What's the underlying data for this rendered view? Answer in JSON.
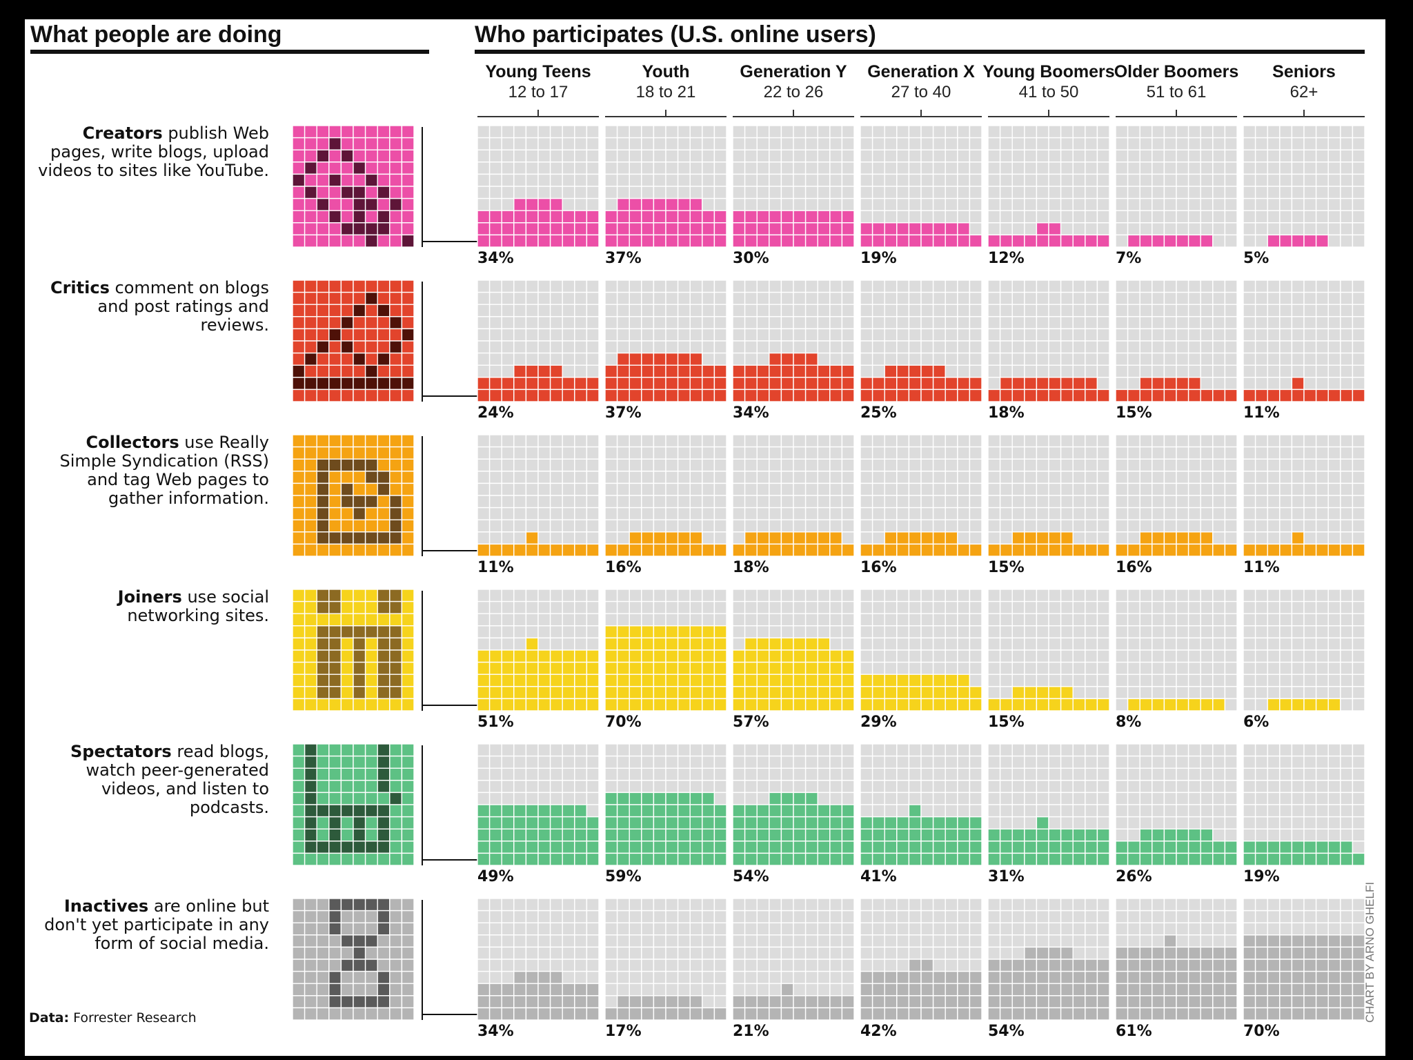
{
  "headers": {
    "left": "What people are doing",
    "right": "Who participates (U.S. online users)"
  },
  "source": {
    "label": "Data:",
    "text": "Forrester Research"
  },
  "credit": "CHART BY ARNO GHELFI",
  "chart_data": {
    "type": "heatmap",
    "title": "Who participates (U.S. online users)",
    "unit": "percent of online users in age group",
    "groups": [
      {
        "name": "Young Teens",
        "range": "12 to 17"
      },
      {
        "name": "Youth",
        "range": "18 to 21"
      },
      {
        "name": "Generation Y",
        "range": "22 to 26"
      },
      {
        "name": "Generation X",
        "range": "27 to 40"
      },
      {
        "name": "Young Boomers",
        "range": "41 to 50"
      },
      {
        "name": "Older Boomers",
        "range": "51 to 61"
      },
      {
        "name": "Seniors",
        "range": "62+"
      }
    ],
    "activities": [
      {
        "name": "Creators",
        "description": "publish Web pages, write blogs, upload videos to sites like YouTube.",
        "color": "#ec4fa7",
        "dark": "#5e1538",
        "values": [
          34,
          37,
          30,
          19,
          12,
          7,
          5
        ],
        "labels": [
          "34%",
          "37%",
          "30%",
          "19%",
          "12%",
          "7%",
          "5%"
        ]
      },
      {
        "name": "Critics",
        "description": "comment on blogs and post ratings and reviews.",
        "color": "#e2442c",
        "dark": "#4e1108",
        "values": [
          24,
          37,
          34,
          25,
          18,
          15,
          11
        ],
        "labels": [
          "24%",
          "37%",
          "34%",
          "25%",
          "18%",
          "15%",
          "11%"
        ]
      },
      {
        "name": "Collectors",
        "description": "use Really Simple Syndication (RSS) and tag Web pages to gather information.",
        "color": "#f5a312",
        "dark": "#6e4b1d",
        "values": [
          11,
          16,
          18,
          16,
          15,
          16,
          11
        ],
        "labels": [
          "11%",
          "16%",
          "18%",
          "16%",
          "15%",
          "16%",
          "11%"
        ]
      },
      {
        "name": "Joiners",
        "description": "use social networking sites.",
        "color": "#f6d31c",
        "dark": "#8c6a22",
        "values": [
          51,
          70,
          57,
          29,
          15,
          8,
          6
        ],
        "labels": [
          "51%",
          "70%",
          "57%",
          "29%",
          "15%",
          "8%",
          "6%"
        ]
      },
      {
        "name": "Spectators",
        "description": "read blogs, watch peer-generated videos, and listen to podcasts.",
        "color": "#5dc184",
        "dark": "#2d5a3b",
        "values": [
          49,
          59,
          54,
          41,
          31,
          26,
          19
        ],
        "labels": [
          "49%",
          "59%",
          "54%",
          "41%",
          "31%",
          "26%",
          "19%"
        ]
      },
      {
        "name": "Inactives",
        "description": "are online but don't yet participate in any form of social media.",
        "color": "#b4b4b4",
        "dark": "#5a5a5a",
        "values": [
          34,
          17,
          21,
          42,
          54,
          61,
          70
        ],
        "labels": [
          "34%",
          "17%",
          "21%",
          "42%",
          "54%",
          "61%",
          "70%"
        ]
      }
    ]
  }
}
